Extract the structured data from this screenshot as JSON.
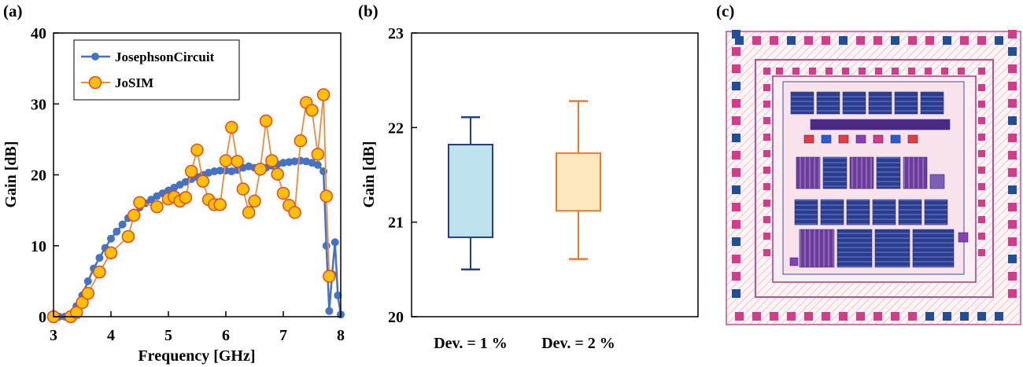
{
  "panels": {
    "a": "(a)",
    "b": "(b)",
    "c": "(c)"
  },
  "chart_data": [
    {
      "type": "line",
      "panel": "(a)",
      "xlabel": "Frequency [GHz]",
      "ylabel": "Gain [dB]",
      "xlim": [
        3,
        8
      ],
      "ylim": [
        0,
        40
      ],
      "xticks": [
        3,
        4,
        5,
        6,
        7,
        8
      ],
      "yticks": [
        0,
        10,
        20,
        30,
        40
      ],
      "legend": "top-left",
      "series": [
        {
          "name": "JosephsonCircuit",
          "color": "#4472c4",
          "x": [
            3.0,
            3.1,
            3.2,
            3.3,
            3.4,
            3.5,
            3.6,
            3.7,
            3.8,
            3.9,
            4.0,
            4.1,
            4.2,
            4.3,
            4.4,
            4.5,
            4.6,
            4.7,
            4.8,
            4.9,
            5.0,
            5.1,
            5.2,
            5.3,
            5.4,
            5.5,
            5.6,
            5.7,
            5.8,
            5.9,
            6.0,
            6.1,
            6.2,
            6.3,
            6.4,
            6.5,
            6.6,
            6.7,
            6.8,
            6.9,
            7.0,
            7.1,
            7.2,
            7.3,
            7.4,
            7.5,
            7.6,
            7.7,
            7.75,
            7.8,
            7.85,
            7.9,
            7.95,
            8.0
          ],
          "y": [
            0.0,
            0.0,
            0.0,
            0.3,
            1.5,
            3.0,
            5.0,
            6.8,
            8.3,
            9.7,
            11.0,
            12.0,
            13.0,
            13.9,
            14.7,
            15.4,
            16.0,
            16.5,
            17.0,
            17.4,
            17.8,
            18.2,
            18.6,
            19.0,
            19.4,
            19.7,
            20.0,
            20.3,
            20.5,
            20.6,
            20.6,
            20.5,
            20.7,
            21.0,
            21.2,
            21.0,
            20.9,
            21.0,
            21.3,
            21.5,
            21.7,
            21.8,
            21.9,
            22.0,
            21.9,
            21.7,
            21.4,
            20.5,
            10.0,
            0.8,
            6.0,
            10.5,
            3.0,
            0.3
          ]
        },
        {
          "name": "JoSIM",
          "color": "#ffc000",
          "edgecolor": "#e8472a",
          "x": [
            3.0,
            3.3,
            3.4,
            3.5,
            3.6,
            3.8,
            4.0,
            4.3,
            4.4,
            4.5,
            4.8,
            5.0,
            5.1,
            5.2,
            5.3,
            5.4,
            5.5,
            5.6,
            5.7,
            5.8,
            5.9,
            6.0,
            6.1,
            6.2,
            6.3,
            6.4,
            6.5,
            6.6,
            6.7,
            6.8,
            6.9,
            7.0,
            7.1,
            7.2,
            7.3,
            7.4,
            7.5,
            7.6,
            7.7,
            7.75,
            7.8
          ],
          "y": [
            0.0,
            0.0,
            0.6,
            2.0,
            3.3,
            6.3,
            9.0,
            11.3,
            14.3,
            16.1,
            15.5,
            16.6,
            16.9,
            16.3,
            16.8,
            20.5,
            23.5,
            19.1,
            16.5,
            15.8,
            15.8,
            22.0,
            26.7,
            21.9,
            18.0,
            14.7,
            16.3,
            20.8,
            27.6,
            22.0,
            20.1,
            17.4,
            15.7,
            14.7,
            24.8,
            30.2,
            29.1,
            22.9,
            31.3,
            17.0,
            5.7
          ]
        }
      ]
    },
    {
      "type": "box",
      "panel": "(b)",
      "ylabel": "Gain [dB]",
      "ylim": [
        20,
        23
      ],
      "yticks": [
        20,
        21,
        22,
        23
      ],
      "categories": [
        "Dev. = 1 %",
        "Dev. = 2 %"
      ],
      "boxes": [
        {
          "whisker_low": 20.5,
          "q1": 20.84,
          "q3": 21.82,
          "whisker_high": 22.11,
          "fill": "#bfe3ee",
          "edge": "#1f3c99"
        },
        {
          "whisker_low": 20.61,
          "q1": 21.12,
          "q3": 21.73,
          "whisker_high": 22.28,
          "fill": "#fde8bf",
          "edge": "#ec7a2a"
        }
      ]
    }
  ]
}
